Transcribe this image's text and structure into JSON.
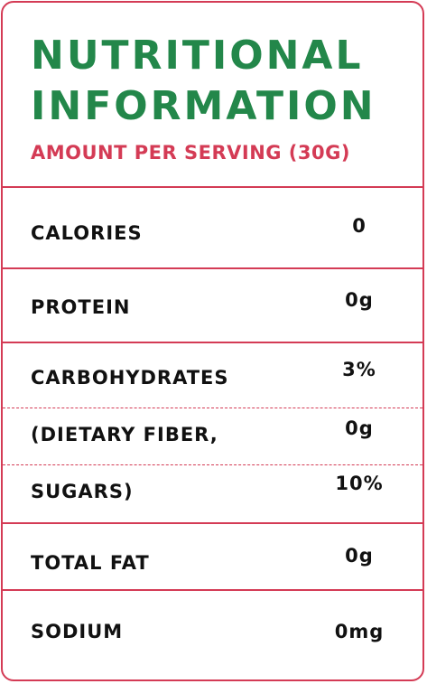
{
  "title": {
    "line1": "NUTRITIONAL",
    "line2": "INFORMATION"
  },
  "subtitle": "AMOUNT PER SERVING (30G)",
  "colors": {
    "title_green": "#23874a",
    "accent_red": "#d43b55",
    "text": "#111111"
  },
  "rows": [
    {
      "label": "CALORIES",
      "value": "0"
    },
    {
      "label": "PROTEIN",
      "value": "0g"
    },
    {
      "label": "CARBOHYDRATES",
      "value": "3%"
    },
    {
      "label": "(DIETARY FIBER,",
      "value": "0g"
    },
    {
      "label": "SUGARS)",
      "value": "10%"
    },
    {
      "label": "TOTAL FAT",
      "value": "0g"
    },
    {
      "label": "SODIUM",
      "value": "0mg"
    }
  ]
}
